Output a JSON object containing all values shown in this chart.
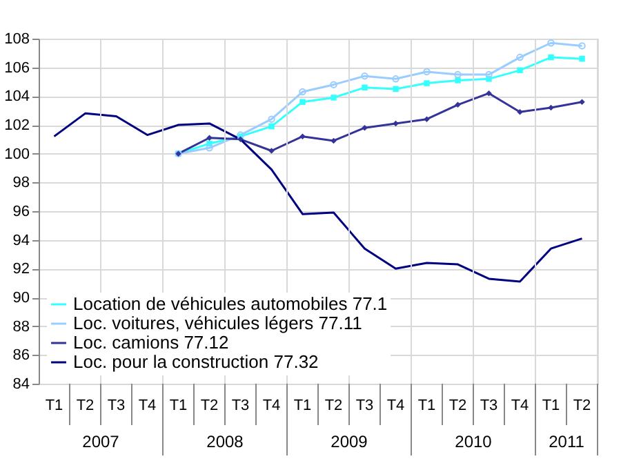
{
  "chart_data": {
    "type": "line",
    "categories": [
      "T1",
      "T2",
      "T3",
      "T4",
      "T1",
      "T2",
      "T3",
      "T4",
      "T1",
      "T2",
      "T3",
      "T4",
      "T1",
      "T2",
      "T3",
      "T4",
      "T1",
      "T2"
    ],
    "annotations": [
      "2007",
      "2008",
      "2009",
      "2010",
      "2011"
    ],
    "ylim": [
      84,
      108
    ],
    "yticks": [
      84,
      86,
      88,
      90,
      92,
      94,
      96,
      98,
      100,
      102,
      104,
      106,
      108
    ],
    "grid": true,
    "legend": "bottom left",
    "line_style": "solid",
    "series": [
      {
        "name": "Location de véhicules automobiles 77.1",
        "color": "#33ffff",
        "marker": "square",
        "values": [
          null,
          null,
          null,
          null,
          100.0,
          100.7,
          101.2,
          101.9,
          103.6,
          103.9,
          104.6,
          104.5,
          104.9,
          105.1,
          105.2,
          105.8,
          106.7,
          106.6
        ]
      },
      {
        "name": "Loc. voitures, véhicules légers 77.11",
        "color": "#99ccff",
        "marker": "circle",
        "values": [
          null,
          null,
          null,
          null,
          100.0,
          100.4,
          101.3,
          102.4,
          104.3,
          104.8,
          105.4,
          105.2,
          105.7,
          105.5,
          105.5,
          106.7,
          107.7,
          107.5
        ]
      },
      {
        "name": "Loc. camions 77.12",
        "color": "#333399",
        "marker": "diamond",
        "values": [
          null,
          null,
          null,
          null,
          100.0,
          101.1,
          101.0,
          100.2,
          101.2,
          100.9,
          101.8,
          102.1,
          102.4,
          103.4,
          104.2,
          102.9,
          103.2,
          103.6
        ]
      },
      {
        "name": "Loc. pour la construction 77.32",
        "color": "#000080",
        "marker": "none",
        "values": [
          101.2,
          102.8,
          102.6,
          101.3,
          102.0,
          102.1,
          101.0,
          98.9,
          95.8,
          95.9,
          93.4,
          92.0,
          92.4,
          92.3,
          91.3,
          91.1,
          93.4,
          94.1
        ]
      }
    ]
  }
}
